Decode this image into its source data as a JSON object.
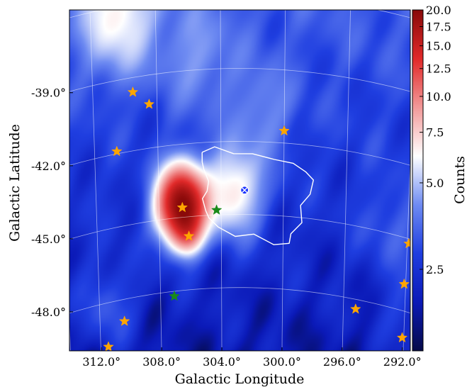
{
  "chart_data": {
    "type": "heatmap",
    "title": "",
    "xlabel": "Galactic Longitude",
    "ylabel": "Galactic Latitude",
    "x_tick_labels": [
      "312.0°",
      "308.0°",
      "304.0°",
      "300.0°",
      "296.0°",
      "292.0°"
    ],
    "x_tick_values": [
      312.0,
      308.0,
      304.0,
      300.0,
      296.0,
      292.0
    ],
    "y_tick_labels": [
      "-39.0°",
      "-42.0°",
      "-45.0°",
      "-48.0°"
    ],
    "y_tick_values": [
      -39.0,
      -42.0,
      -45.0,
      -48.0
    ],
    "xlim": [
      313.7,
      291.9
    ],
    "ylim": [
      -50.6,
      -36.6
    ],
    "x_reversed": true,
    "grid": true,
    "grid_color": "#ffffff",
    "colormap": [
      "#050a4a",
      "#0b1ab8",
      "#1f3ee0",
      "#6f8cf2",
      "#ffffff",
      "#f29a9a",
      "#e22a2a",
      "#8a0a0a"
    ],
    "colorbar": {
      "label": "Counts",
      "scale": "log",
      "range": [
        1.3,
        20.0
      ],
      "tick_labels": [
        "20.0",
        "17.5",
        "15.0",
        "12.5",
        "10.0",
        "7.5",
        "5.0",
        "2.5"
      ],
      "tick_values": [
        20.0,
        17.5,
        15.0,
        12.5,
        10.0,
        7.5,
        5.0,
        2.5
      ]
    },
    "features": [
      {
        "kind": "hotspot",
        "lon": 306.5,
        "lat": -44.6,
        "counts": 20.0,
        "spread": 1.0
      },
      {
        "kind": "hotspot",
        "lon": 306.1,
        "lat": -45.8,
        "counts": 6.0,
        "spread": 0.6
      },
      {
        "kind": "hotspot",
        "lon": 303.2,
        "lat": -44.1,
        "counts": 6.5,
        "spread": 1.2
      },
      {
        "kind": "hotspot",
        "lon": 310.6,
        "lat": -36.8,
        "counts": 5.5,
        "spread": 1.6
      },
      {
        "kind": "hotspot",
        "lon": 305.5,
        "lat": -38.6,
        "counts": 3.5,
        "spread": 1.5
      },
      {
        "kind": "hotspot",
        "lon": 301.4,
        "lat": -40.9,
        "counts": 3.5,
        "spread": 1.4
      },
      {
        "kind": "hotspot",
        "lon": 311.2,
        "lat": -48.8,
        "counts": 3.4,
        "spread": 1.2
      },
      {
        "kind": "hotspot",
        "lon": 293.0,
        "lat": -45.6,
        "counts": 3.2,
        "spread": 1.4
      },
      {
        "kind": "hotspot",
        "lon": 292.4,
        "lat": -49.3,
        "counts": 3.0,
        "spread": 1.0
      }
    ],
    "markers": [
      {
        "type": "star",
        "color": "#ffa500",
        "lon": 309.5,
        "lat": -39.6
      },
      {
        "type": "star",
        "color": "#ffa500",
        "lon": 308.5,
        "lat": -40.2
      },
      {
        "type": "star",
        "color": "#ffa500",
        "lon": 310.6,
        "lat": -41.9
      },
      {
        "type": "star",
        "color": "#ffa500",
        "lon": 300.0,
        "lat": -41.5
      },
      {
        "type": "star",
        "color": "#ffa500",
        "lon": 306.5,
        "lat": -44.6
      },
      {
        "type": "star",
        "color": "#ffa500",
        "lon": 306.1,
        "lat": -45.8
      },
      {
        "type": "star",
        "color": "#ffa500",
        "lon": 310.4,
        "lat": -48.9
      },
      {
        "type": "star",
        "color": "#ffa500",
        "lon": 311.5,
        "lat": -49.8
      },
      {
        "type": "star",
        "color": "#ffa500",
        "lon": 295.2,
        "lat": -48.4
      },
      {
        "type": "star",
        "color": "#ffa500",
        "lon": 291.9,
        "lat": -45.2
      },
      {
        "type": "star",
        "color": "#ffa500",
        "lon": 292.1,
        "lat": -46.9
      },
      {
        "type": "star",
        "color": "#ffa500",
        "lon": 292.1,
        "lat": -49.1
      },
      {
        "type": "star",
        "color": "#1a8a1a",
        "lon": 304.3,
        "lat": -44.8
      },
      {
        "type": "star",
        "color": "#1a8a1a",
        "lon": 307.1,
        "lat": -48.2
      },
      {
        "type": "circle-cross",
        "color": "#1a33ff",
        "lon": 302.5,
        "lat": -44.0
      }
    ],
    "contour": {
      "color": "#ffffff",
      "lon": [
        305.2,
        304.4,
        303.2,
        302.0,
        300.6,
        299.4,
        298.6,
        298.1,
        298.3,
        298.9,
        298.8,
        299.5,
        299.6,
        300.6,
        301.9,
        303.1,
        304.2,
        304.8,
        305.0,
        305.2,
        304.9,
        304.8,
        305.1,
        305.2,
        305.2
      ],
      "lat": [
        -42.4,
        -42.2,
        -42.5,
        -42.5,
        -42.7,
        -42.8,
        -43.1,
        -43.4,
        -44.0,
        -44.5,
        -45.2,
        -45.7,
        -46.1,
        -46.2,
        -45.8,
        -45.9,
        -45.5,
        -45.1,
        -44.8,
        -44.3,
        -44.0,
        -43.6,
        -43.1,
        -42.8,
        -42.4
      ]
    }
  }
}
